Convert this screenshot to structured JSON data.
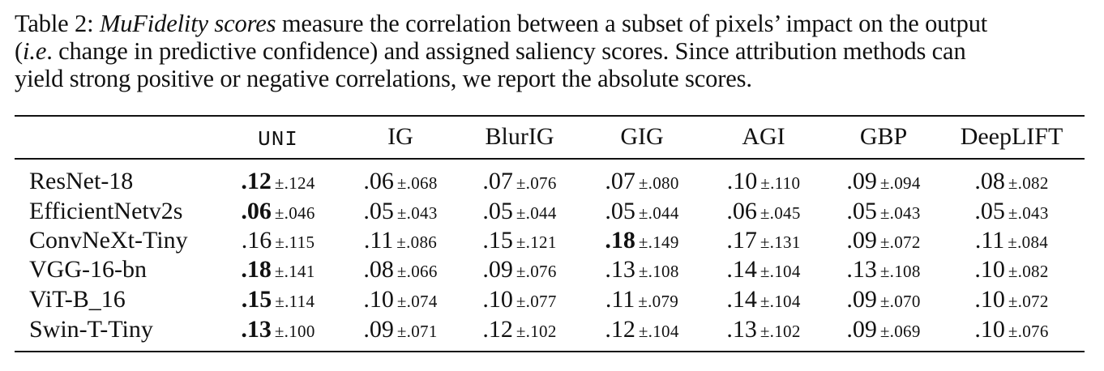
{
  "caption": {
    "label": "Table 2:",
    "emph": "MuFidelity scores",
    "line1_rest": "measure the correlation between a subset of pixels’ impact on the output",
    "line2_open": "(",
    "line2_ie": "i.e",
    "line2_rest": ". change in predictive confidence) and assigned saliency scores. Since attribution methods can",
    "line3": "yield strong positive or negative correlations, we report the absolute scores."
  },
  "table": {
    "columns": [
      "UNI",
      "IG",
      "BlurIG",
      "GIG",
      "AGI",
      "GBP",
      "DeepLIFT"
    ],
    "rows": [
      {
        "model": "ResNet-18",
        "cells": [
          {
            "m": ".12",
            "sd": "±.124",
            "best": true
          },
          {
            "m": ".06",
            "sd": "±.068",
            "best": false
          },
          {
            "m": ".07",
            "sd": "±.076",
            "best": false
          },
          {
            "m": ".07",
            "sd": "±.080",
            "best": false
          },
          {
            "m": ".10",
            "sd": "±.110",
            "best": false
          },
          {
            "m": ".09",
            "sd": "±.094",
            "best": false
          },
          {
            "m": ".08",
            "sd": "±.082",
            "best": false
          }
        ]
      },
      {
        "model": "EfficientNetv2s",
        "cells": [
          {
            "m": ".06",
            "sd": "±.046",
            "best": true
          },
          {
            "m": ".05",
            "sd": "±.043",
            "best": false
          },
          {
            "m": ".05",
            "sd": "±.044",
            "best": false
          },
          {
            "m": ".05",
            "sd": "±.044",
            "best": false
          },
          {
            "m": ".06",
            "sd": "±.045",
            "best": false
          },
          {
            "m": ".05",
            "sd": "±.043",
            "best": false
          },
          {
            "m": ".05",
            "sd": "±.043",
            "best": false
          }
        ]
      },
      {
        "model": "ConvNeXt-Tiny",
        "cells": [
          {
            "m": ".16",
            "sd": "±.115",
            "best": false
          },
          {
            "m": ".11",
            "sd": "±.086",
            "best": false
          },
          {
            "m": ".15",
            "sd": "±.121",
            "best": false
          },
          {
            "m": ".18",
            "sd": "±.149",
            "best": true
          },
          {
            "m": ".17",
            "sd": "±.131",
            "best": false
          },
          {
            "m": ".09",
            "sd": "±.072",
            "best": false
          },
          {
            "m": ".11",
            "sd": "±.084",
            "best": false
          }
        ]
      },
      {
        "model": "VGG-16-bn",
        "cells": [
          {
            "m": ".18",
            "sd": "±.141",
            "best": true
          },
          {
            "m": ".08",
            "sd": "±.066",
            "best": false
          },
          {
            "m": ".09",
            "sd": "±.076",
            "best": false
          },
          {
            "m": ".13",
            "sd": "±.108",
            "best": false
          },
          {
            "m": ".14",
            "sd": "±.104",
            "best": false
          },
          {
            "m": ".13",
            "sd": "±.108",
            "best": false
          },
          {
            "m": ".10",
            "sd": "±.082",
            "best": false
          }
        ]
      },
      {
        "model": "ViT-B_16",
        "cells": [
          {
            "m": ".15",
            "sd": "±.114",
            "best": true
          },
          {
            "m": ".10",
            "sd": "±.074",
            "best": false
          },
          {
            "m": ".10",
            "sd": "±.077",
            "best": false
          },
          {
            "m": ".11",
            "sd": "±.079",
            "best": false
          },
          {
            "m": ".14",
            "sd": "±.104",
            "best": false
          },
          {
            "m": ".09",
            "sd": "±.070",
            "best": false
          },
          {
            "m": ".10",
            "sd": "±.072",
            "best": false
          }
        ]
      },
      {
        "model": "Swin-T-Tiny",
        "cells": [
          {
            "m": ".13",
            "sd": "±.100",
            "best": true
          },
          {
            "m": ".09",
            "sd": "±.071",
            "best": false
          },
          {
            "m": ".12",
            "sd": "±.102",
            "best": false
          },
          {
            "m": ".12",
            "sd": "±.104",
            "best": false
          },
          {
            "m": ".13",
            "sd": "±.102",
            "best": false
          },
          {
            "m": ".09",
            "sd": "±.069",
            "best": false
          },
          {
            "m": ".10",
            "sd": "±.076",
            "best": false
          }
        ]
      }
    ]
  }
}
